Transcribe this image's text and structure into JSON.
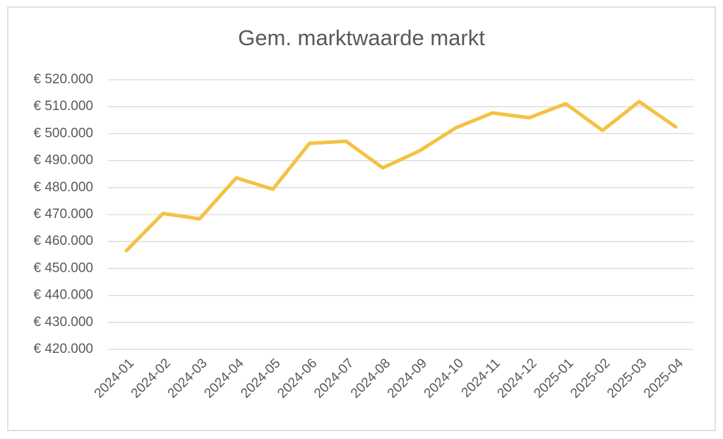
{
  "chart_data": {
    "type": "line",
    "title": "Gem. marktwaarde markt",
    "categories": [
      "2024-01",
      "2024-02",
      "2024-03",
      "2024-04",
      "2024-05",
      "2024-06",
      "2024-07",
      "2024-08",
      "2024-09",
      "2024-10",
      "2024-11",
      "2024-12",
      "2025-01",
      "2025-02",
      "2025-03",
      "2025-04"
    ],
    "values": [
      456600,
      470400,
      468400,
      483600,
      479400,
      496400,
      497200,
      487300,
      493600,
      502200,
      507700,
      505900,
      511100,
      501200,
      511900,
      502500
    ],
    "color": "#f4c242",
    "ylim": [
      420000,
      520000
    ],
    "yticks": [
      {
        "value": 420000,
        "label": "€ 420.000"
      },
      {
        "value": 430000,
        "label": "€ 430.000"
      },
      {
        "value": 440000,
        "label": "€ 440.000"
      },
      {
        "value": 450000,
        "label": "€ 450.000"
      },
      {
        "value": 460000,
        "label": "€ 460.000"
      },
      {
        "value": 470000,
        "label": "€ 470.000"
      },
      {
        "value": 480000,
        "label": "€ 480.000"
      },
      {
        "value": 490000,
        "label": "€ 490.000"
      },
      {
        "value": 500000,
        "label": "€ 500.000"
      },
      {
        "value": 510000,
        "label": "€ 510.000"
      },
      {
        "value": 520000,
        "label": "€ 520.000"
      }
    ],
    "grid": true
  }
}
